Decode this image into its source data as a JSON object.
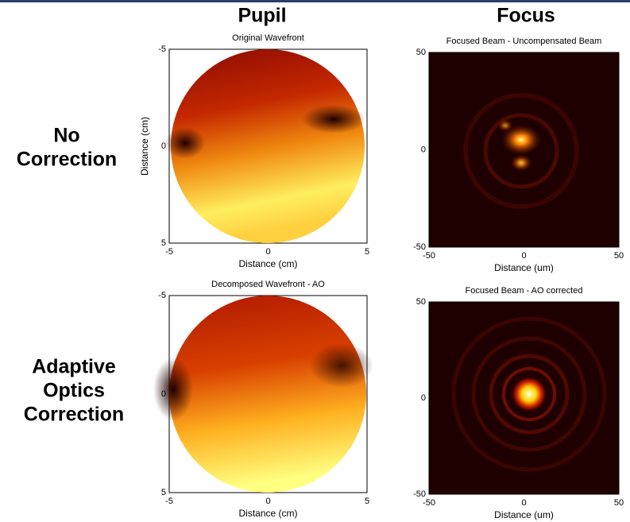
{
  "header": {
    "columns": [
      "Pupil",
      "Focus"
    ]
  },
  "rows": [
    {
      "label_lines": [
        "No",
        "Correction"
      ]
    },
    {
      "label_lines": [
        "Adaptive",
        "Optics",
        "Correction"
      ]
    }
  ],
  "panels": [
    {
      "title": "Original Wavefront",
      "xlabel": "Distance (cm)",
      "ylabel": "Distance (cm)",
      "xticks": [
        -5,
        0,
        5
      ],
      "yticks": [
        -5,
        0,
        5
      ]
    },
    {
      "title": "Focused Beam - Uncompensated Beam",
      "xlabel": "Distance (um)",
      "xticks": [
        -50,
        0,
        50
      ],
      "yticks": [
        50,
        0,
        -50
      ]
    },
    {
      "title": "Decomposed Wavefront - AO",
      "xlabel": "Distance (cm)",
      "xticks": [
        -5,
        0,
        5
      ],
      "yticks": [
        -5,
        0,
        5
      ]
    },
    {
      "title": "Focused Beam - AO corrected",
      "xlabel": "Distance (um)",
      "xticks": [
        -50,
        0,
        50
      ],
      "yticks": [
        50,
        0,
        -50
      ]
    }
  ]
}
